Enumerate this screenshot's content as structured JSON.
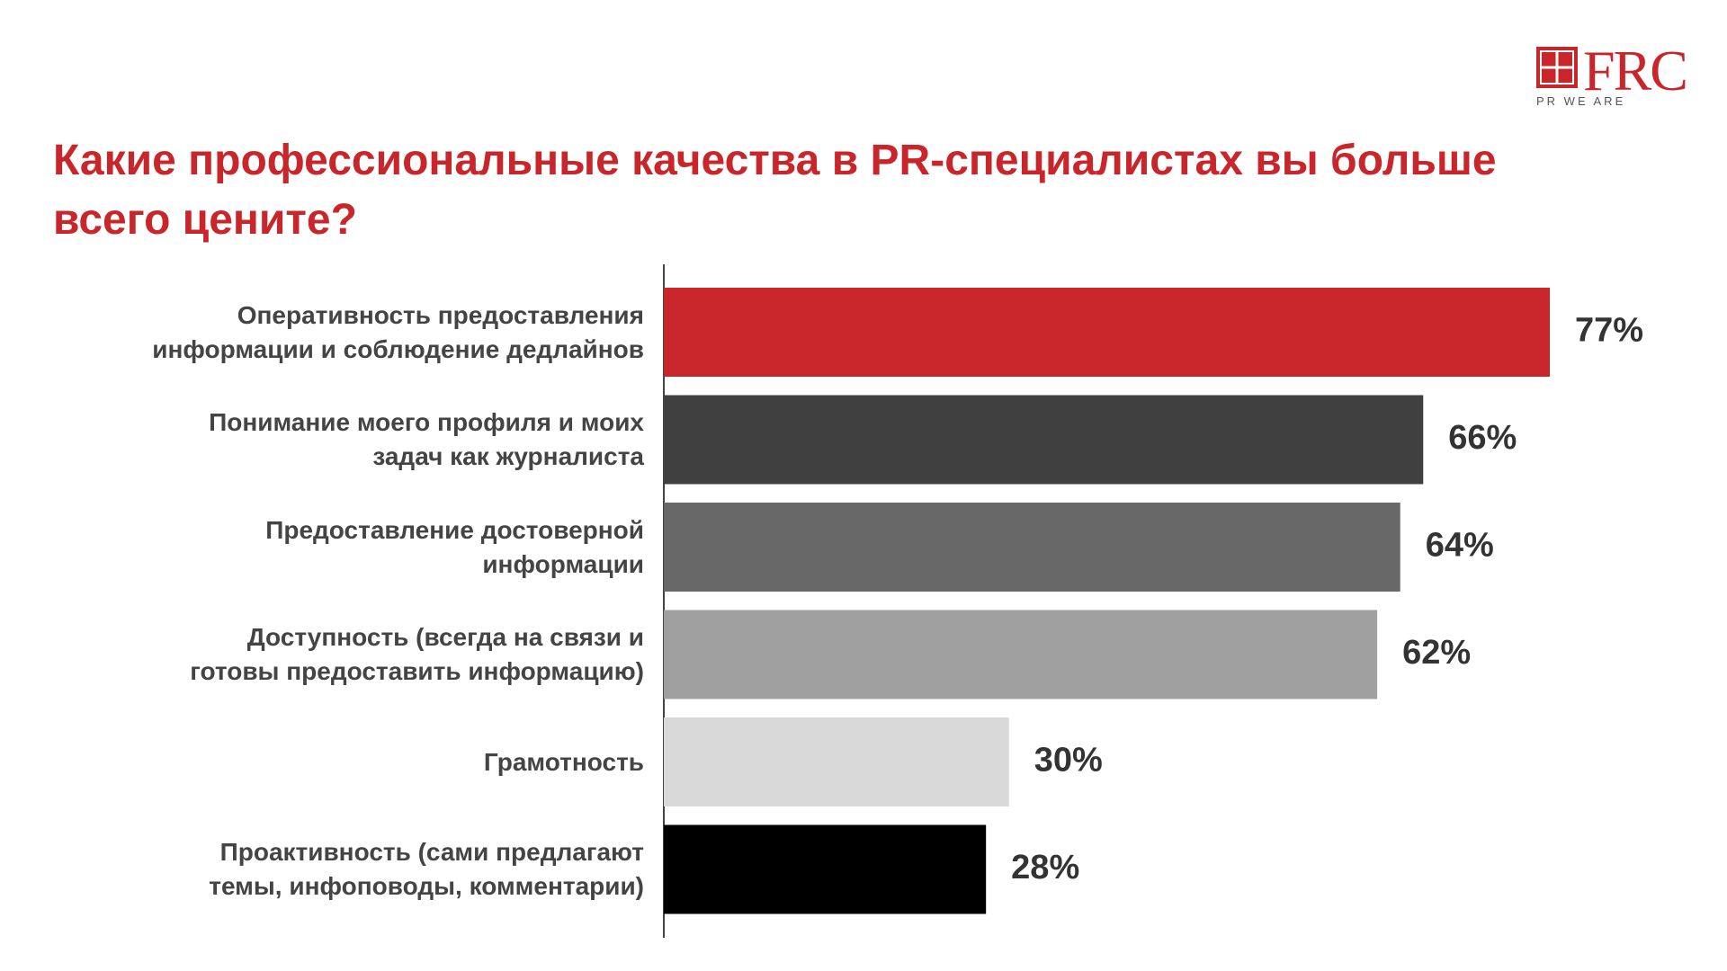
{
  "logo": {
    "name": "FRC",
    "tagline": "PR WE ARE"
  },
  "chart_data": {
    "type": "bar",
    "orientation": "horizontal",
    "title": "Какие профессиональные качества в PR-специалистах вы больше\nвсего цените?",
    "categories": [
      "Оперативность предоставления\nинформации и соблюдение дедлайнов",
      "Понимание моего профиля и моих\nзадач как журналиста",
      "Предоставление достоверной\nинформации",
      "Доступность (всегда на связи и\nготовы предоставить информацию)",
      "Грамотность",
      "Проактивность (сами предлагают\nтемы, инфоповоды, комментарии)"
    ],
    "values": [
      77,
      66,
      64,
      62,
      30,
      28
    ],
    "value_labels": [
      "77%",
      "66%",
      "64%",
      "62%",
      "30%",
      "28%"
    ],
    "colors": [
      "#c8262a",
      "#404040",
      "#686868",
      "#a0a0a0",
      "#d9d9d9",
      "#000000"
    ]
  }
}
